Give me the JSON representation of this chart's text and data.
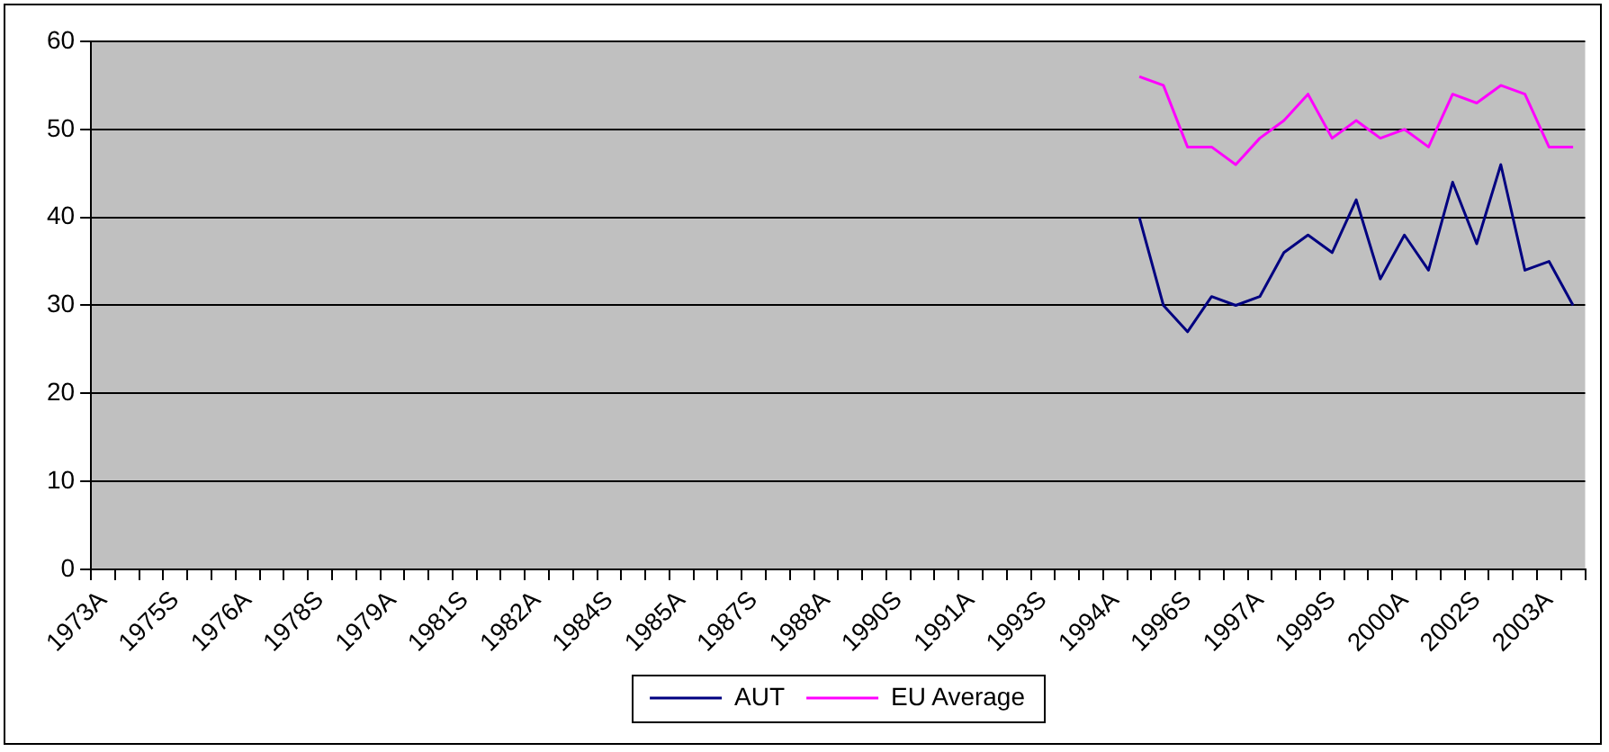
{
  "chart_data": {
    "type": "line",
    "categories": [
      "1973A",
      null,
      null,
      "1975S",
      null,
      null,
      "1976A",
      null,
      null,
      "1978S",
      null,
      null,
      "1979A",
      null,
      null,
      "1981S",
      null,
      null,
      "1982A",
      null,
      null,
      "1984S",
      null,
      null,
      "1985A",
      null,
      null,
      "1987S",
      null,
      null,
      "1988A",
      null,
      null,
      "1990S",
      null,
      null,
      "1991A",
      null,
      null,
      "1993S",
      null,
      null,
      "1994A",
      null,
      null,
      "1996S",
      null,
      null,
      "1997A",
      null,
      null,
      "1999S",
      null,
      null,
      "2000A",
      null,
      null,
      "2002S",
      null,
      null,
      "2003A",
      null
    ],
    "series": [
      {
        "name": "AUT",
        "color": "#000080",
        "values": [
          null,
          null,
          null,
          null,
          null,
          null,
          null,
          null,
          null,
          null,
          null,
          null,
          null,
          null,
          null,
          null,
          null,
          null,
          null,
          null,
          null,
          null,
          null,
          null,
          null,
          null,
          null,
          null,
          null,
          null,
          null,
          null,
          null,
          null,
          null,
          null,
          null,
          null,
          null,
          null,
          null,
          null,
          null,
          40,
          30,
          27,
          31,
          30,
          31,
          36,
          38,
          36,
          42,
          33,
          38,
          34,
          44,
          37,
          46,
          34,
          35,
          30
        ]
      },
      {
        "name": "EU Average",
        "color": "#ff00ff",
        "values": [
          null,
          null,
          null,
          null,
          null,
          null,
          null,
          null,
          null,
          null,
          null,
          null,
          null,
          null,
          null,
          null,
          null,
          null,
          null,
          null,
          null,
          null,
          null,
          null,
          null,
          null,
          null,
          null,
          null,
          null,
          null,
          null,
          null,
          null,
          null,
          null,
          null,
          null,
          null,
          null,
          null,
          null,
          null,
          56,
          55,
          48,
          48,
          46,
          49,
          51,
          54,
          49,
          51,
          49,
          50,
          48,
          54,
          53,
          55,
          54,
          48,
          48
        ]
      }
    ],
    "ylim": [
      0,
      60
    ],
    "yticks": [
      0,
      10,
      20,
      30,
      40,
      50,
      60
    ],
    "grid": "y",
    "legend": "bottom",
    "marker": "none",
    "line_style": "solid"
  }
}
